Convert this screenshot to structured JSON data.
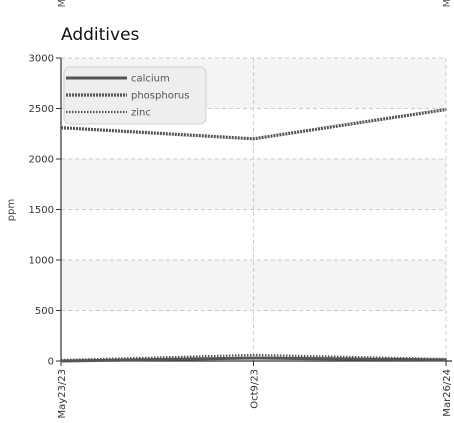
{
  "chart_data": {
    "type": "line",
    "title": "Additives",
    "xlabel": "",
    "ylabel": "ppm",
    "categories": [
      "May23/23",
      "Oct9/23",
      "Mar26/24"
    ],
    "ylim": [
      0,
      3000
    ],
    "yticks": [
      0,
      500,
      1000,
      1500,
      2000,
      2500,
      3000
    ],
    "grid": true,
    "legend_position": "top-left",
    "series": [
      {
        "name": "calcium",
        "values": [
          0,
          30,
          10
        ],
        "style": "solid"
      },
      {
        "name": "phosphorus",
        "values": [
          2310,
          2200,
          2490
        ],
        "style": "dense-dashed"
      },
      {
        "name": "zinc",
        "values": [
          10,
          60,
          20
        ],
        "style": "dotted"
      }
    ]
  },
  "top_truncated": {
    "left": "M",
    "right": "M"
  },
  "colors": {
    "series_line": "#555555",
    "axis": "#333333",
    "grid": "#cccccc",
    "band": "#f4f4f4",
    "legend_bg": "#eeeeee"
  }
}
